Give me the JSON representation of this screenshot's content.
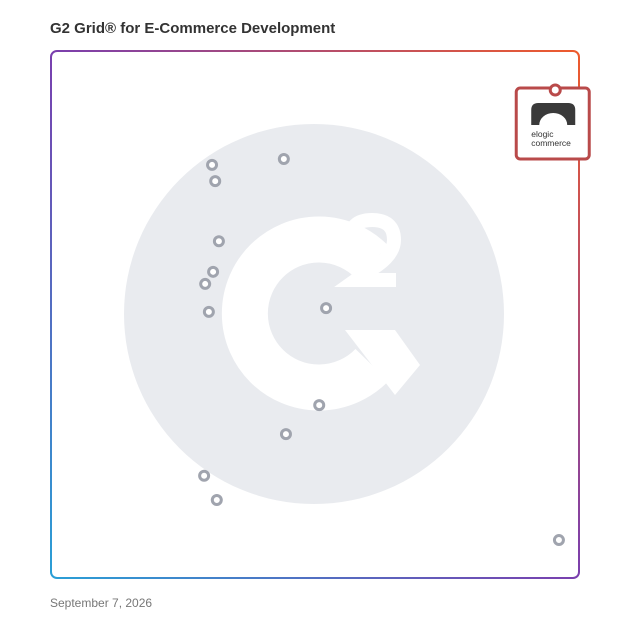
{
  "chart_data": {
    "type": "scatter",
    "title": "G2 Grid® for E-Commerce Development",
    "date": "September 7, 2026",
    "xlim": [
      0,
      100
    ],
    "ylim": [
      0,
      100
    ],
    "series": [
      {
        "color": "#a0a4ae",
        "x": [
          30.5,
          44.1,
          31.1,
          31.8,
          30.7,
          29.2,
          29.9,
          52.1,
          50.8,
          44.5,
          29.0,
          31.4,
          96.2
        ],
        "values": [
          78.4,
          79.5,
          75.3,
          63.9,
          58.1,
          55.8,
          50.5,
          51.2,
          32.8,
          27.3,
          19.4,
          14.8,
          7.2
        ]
      }
    ],
    "highlight": {
      "label_lines": [
        "elogic",
        "commerce"
      ],
      "color": "#b94a4a",
      "x": 95.5,
      "y": 92.6
    }
  }
}
